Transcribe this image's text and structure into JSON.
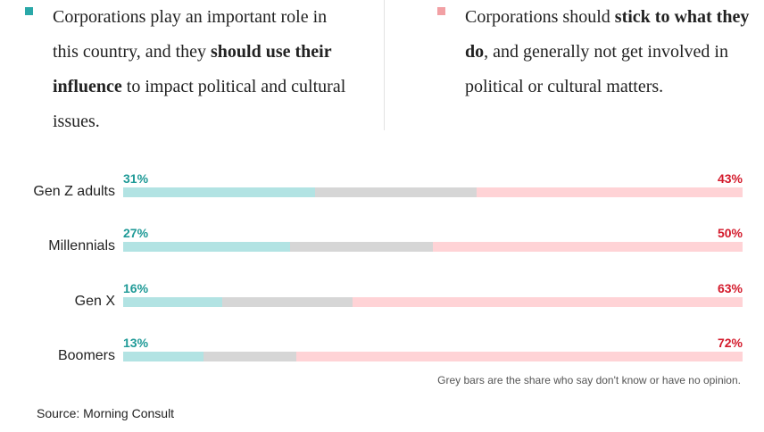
{
  "legend": {
    "left": {
      "color": "#2aa8a8",
      "text_1": "Corporations play an important role in this country, and they ",
      "bold": "should use their influence",
      "text_2": " to impact political and cultural issues."
    },
    "right": {
      "color": "#f2a0a4",
      "text_1": "Corporations should ",
      "bold": "stick to what they do",
      "text_2": ", and generally not get involved in political or cultural matters."
    }
  },
  "colors": {
    "use_influence_bar": "#b2e3e3",
    "no_opinion_bar": "#d6d6d6",
    "stick_bar": "#ffd3d6",
    "use_influence_text": "#1f9a97",
    "stick_text": "#d41b2c"
  },
  "chart_data": {
    "type": "bar",
    "stacked": true,
    "orientation": "horizontal",
    "categories": [
      "Gen Z adults",
      "Millennials",
      "Gen X",
      "Boomers"
    ],
    "series": [
      {
        "key": "use_influence",
        "values": [
          31,
          27,
          16,
          13
        ]
      },
      {
        "key": "no_opinion",
        "values": [
          26,
          23,
          21,
          15
        ]
      },
      {
        "key": "stick",
        "values": [
          43,
          50,
          63,
          72
        ]
      }
    ],
    "value_labels": {
      "use_influence": [
        "31%",
        "27%",
        "16%",
        "13%"
      ],
      "stick": [
        "43%",
        "50%",
        "63%",
        "72%"
      ]
    },
    "xlim": [
      0,
      100
    ]
  },
  "note": "Grey bars are the share who say don't know or have no opinion.",
  "source": "Source: Morning Consult"
}
